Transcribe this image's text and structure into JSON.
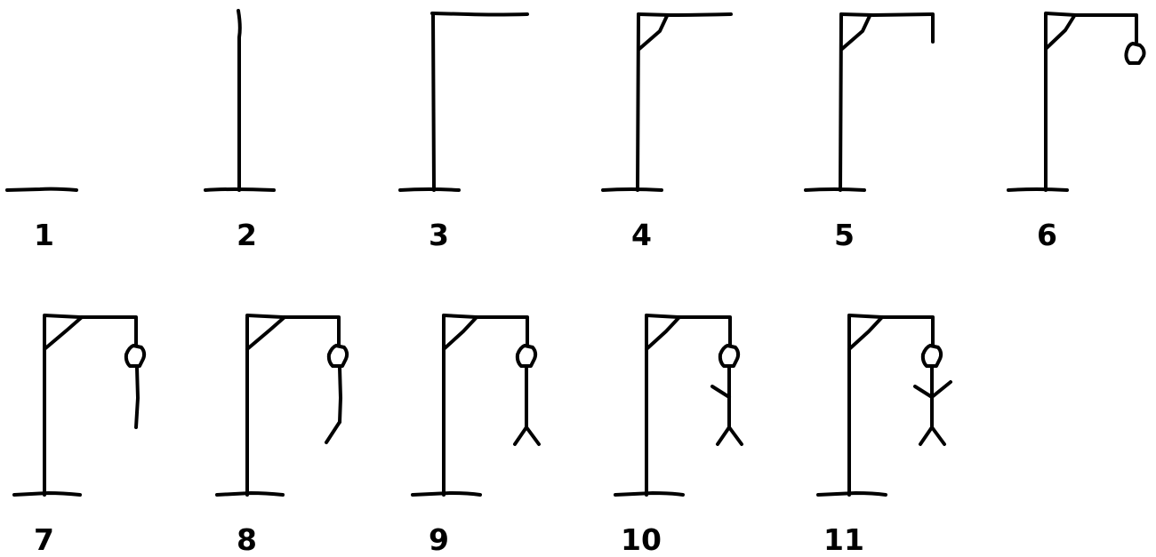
{
  "colors": {
    "ink": "#000000",
    "background": "#ffffff"
  },
  "steps": [
    {
      "label": "1",
      "parts": [
        "base"
      ]
    },
    {
      "label": "2",
      "parts": [
        "base",
        "post"
      ]
    },
    {
      "label": "3",
      "parts": [
        "base",
        "post",
        "beam"
      ]
    },
    {
      "label": "4",
      "parts": [
        "base",
        "post",
        "beam",
        "brace"
      ]
    },
    {
      "label": "5",
      "parts": [
        "base",
        "post",
        "beam",
        "brace",
        "rope"
      ]
    },
    {
      "label": "6",
      "parts": [
        "base",
        "post",
        "beam",
        "brace",
        "rope",
        "head"
      ]
    },
    {
      "label": "7",
      "parts": [
        "base",
        "post",
        "beam",
        "brace",
        "rope",
        "head",
        "body"
      ]
    },
    {
      "label": "8",
      "parts": [
        "base",
        "post",
        "beam",
        "brace",
        "rope",
        "head",
        "body",
        "left-leg"
      ]
    },
    {
      "label": "9",
      "parts": [
        "base",
        "post",
        "beam",
        "brace",
        "rope",
        "head",
        "body",
        "left-leg",
        "right-leg"
      ]
    },
    {
      "label": "10",
      "parts": [
        "base",
        "post",
        "beam",
        "brace",
        "rope",
        "head",
        "body",
        "left-leg",
        "right-leg",
        "left-arm"
      ]
    },
    {
      "label": "11",
      "parts": [
        "base",
        "post",
        "beam",
        "brace",
        "rope",
        "head",
        "body",
        "left-leg",
        "right-leg",
        "left-arm",
        "right-arm"
      ]
    }
  ]
}
